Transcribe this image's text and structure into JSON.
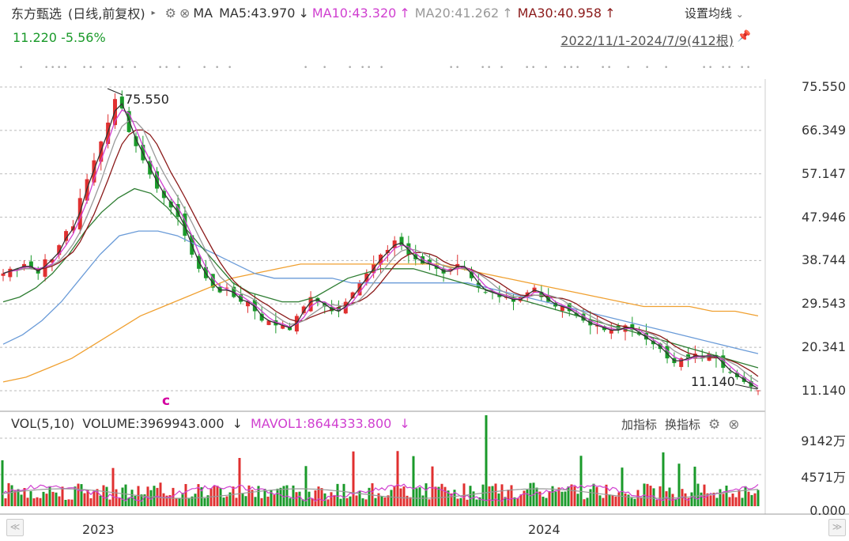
{
  "header": {
    "stock_name": "东方甄选",
    "period": "(日线,前复权)",
    "ma_label": "MA",
    "ma5": "MA5:43.970",
    "ma5_arrow": "↓",
    "ma10": "MA10:43.320",
    "ma10_arrow": "↑",
    "ma20": "MA20:41.262",
    "ma20_arrow": "↑",
    "ma30": "MA30:40.958",
    "ma30_arrow": "↑",
    "settings": "设置均线",
    "settings_chevron": "⌄",
    "price_change": "11.220 -5.56%",
    "range": "2022/11/1-2024/7/9(412根)"
  },
  "volume_header": {
    "vol": "VOL(5,10)",
    "volume": "VOLUME:3969943.000",
    "volume_arrow": "↓",
    "mavol1": "MAVOL1:8644333.800",
    "mavol1_arrow": "↓",
    "add_indicator": "加指标",
    "switch_indicator": "换指标"
  },
  "x_axis": {
    "year_2023": "2023",
    "year_2024": "2024"
  },
  "annotations": {
    "high": "75.550",
    "low": "11.140",
    "c_marker": "c"
  },
  "colors": {
    "up": "#e03030",
    "down": "#1a9a2a",
    "ma5": "#333333",
    "ma10": "#d040d0",
    "ma20": "#999999",
    "ma30": "#8b1a1a",
    "ma60": "#2e7d32",
    "ma120": "#6a9bd8",
    "ma250": "#f0a030",
    "grid": "#bbbbbb"
  },
  "chart_data": {
    "type": "candlestick",
    "date_range": [
      "2022-11-01",
      "2024-07-09"
    ],
    "bar_count": 412,
    "y_ticks": [
      "75.550",
      "66.349",
      "57.147",
      "47.946",
      "38.744",
      "29.543",
      "20.341",
      "11.140"
    ],
    "ylim": [
      11.14,
      75.55
    ],
    "close_series": [
      36,
      37,
      37,
      38,
      37,
      36,
      39,
      39,
      42,
      45,
      46,
      52,
      56,
      60,
      64,
      68,
      73,
      71,
      66,
      63,
      60,
      57,
      54,
      52,
      50,
      48,
      44,
      40,
      37,
      35,
      33,
      32,
      33,
      31,
      30,
      30,
      28,
      26,
      26,
      25,
      25,
      24,
      27,
      29,
      31,
      30,
      29,
      28,
      28,
      30,
      32,
      34,
      36,
      38,
      40,
      41,
      43,
      42,
      40,
      39,
      38,
      38,
      37,
      36,
      37,
      38,
      37,
      35,
      33,
      32,
      32,
      31,
      31,
      30,
      31,
      32,
      33,
      31,
      30,
      29,
      29,
      28,
      27,
      26,
      25,
      25,
      24,
      24,
      24,
      25,
      24,
      23,
      22,
      21,
      20,
      18,
      17,
      18,
      18,
      19,
      18,
      19,
      18,
      16,
      15,
      14,
      13,
      12,
      11.22
    ],
    "ma_lines": {
      "MA60": [
        30,
        31,
        33,
        36,
        40,
        45,
        49,
        52,
        54,
        53,
        50,
        46,
        42,
        38,
        34,
        32,
        31,
        30,
        30,
        31,
        33,
        35,
        36,
        37,
        37,
        37,
        36,
        35,
        34,
        33,
        32,
        31,
        30,
        29,
        28,
        27,
        26,
        25,
        24,
        23,
        22,
        21,
        20,
        19,
        18,
        17,
        16
      ],
      "MA120": [
        21,
        23,
        26,
        30,
        35,
        40,
        44,
        45,
        45,
        44,
        42,
        40,
        38,
        36,
        35,
        35,
        35,
        35,
        34,
        34,
        34,
        34,
        34,
        34,
        34,
        33,
        32,
        31,
        30,
        29,
        28,
        27,
        26,
        25,
        24,
        23,
        22,
        21,
        20,
        19
      ],
      "MA250": [
        13,
        14,
        16,
        18,
        21,
        24,
        27,
        29,
        31,
        33,
        35,
        36,
        37,
        38,
        38,
        38,
        38,
        38,
        38,
        38,
        37,
        36,
        35,
        34,
        33,
        32,
        31,
        30,
        29,
        29,
        29,
        28,
        28,
        27
      ]
    },
    "volume": {
      "y_ticks": [
        "9142万",
        "4571万",
        "0.000"
      ],
      "ylim": [
        0,
        9142
      ]
    }
  }
}
